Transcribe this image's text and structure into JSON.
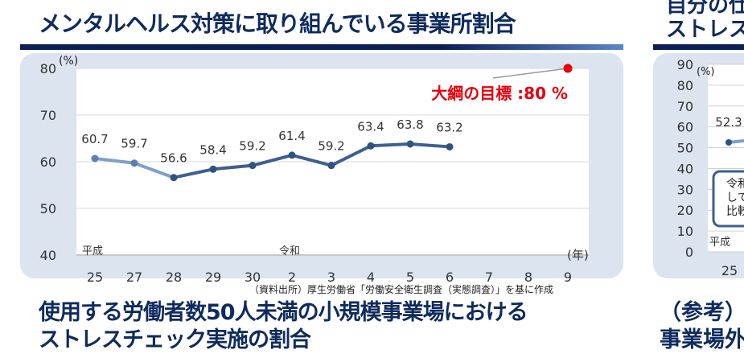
{
  "header": {
    "title": "メンタルヘルス対策に取り組んでいる事業所割合"
  },
  "right_header": {
    "title_line1": "自分の仕",
    "title_line2": "ストレス"
  },
  "chart_data": {
    "type": "line",
    "title": "メンタルヘルス対策に取り組んでいる事業所割合",
    "ylabel": "(%)",
    "xlabel": "(年)",
    "ylim": [
      40,
      80
    ],
    "yticks": [
      40,
      50,
      60,
      70,
      80
    ],
    "categories": [
      "25",
      "27",
      "28",
      "29",
      "30",
      "2",
      "3",
      "4",
      "5",
      "6",
      "7",
      "8",
      "9"
    ],
    "era_labels": [
      {
        "label": "平成",
        "at": "25"
      },
      {
        "label": "令和",
        "at": "2"
      }
    ],
    "series": [
      {
        "values": [
          60.7,
          59.7,
          56.6,
          58.4,
          59.2,
          61.4,
          59.2,
          63.4,
          63.8,
          63.2,
          null,
          null,
          null
        ]
      }
    ],
    "target": {
      "label": "大綱の目標 :80 %",
      "x": "9",
      "value": 80,
      "color": "#e8000b"
    },
    "grid": true,
    "colors": {
      "line_early": "#7f9fc9",
      "line": "#3d5f92",
      "marker": "#2f527f"
    }
  },
  "source": "（資料出所）厚生労働省「労働安全衛生調査（実態調査）」を基に作成",
  "bottom": {
    "title_line1": "使用する労働者数50人未満の小規模事業場における",
    "title_line2": "ストレスチェック実施の割合"
  },
  "right_chart": {
    "ylabel": "(%)",
    "yticks": [
      0,
      10,
      20,
      30,
      40,
      50,
      60,
      70,
      80,
      90
    ],
    "first_label": "52.3",
    "first_x": "25",
    "era": "平成",
    "box_lines": [
      "令和",
      "して",
      "比較"
    ]
  },
  "right_bottom": {
    "line1": "（参考）",
    "line2": "事業場外"
  }
}
